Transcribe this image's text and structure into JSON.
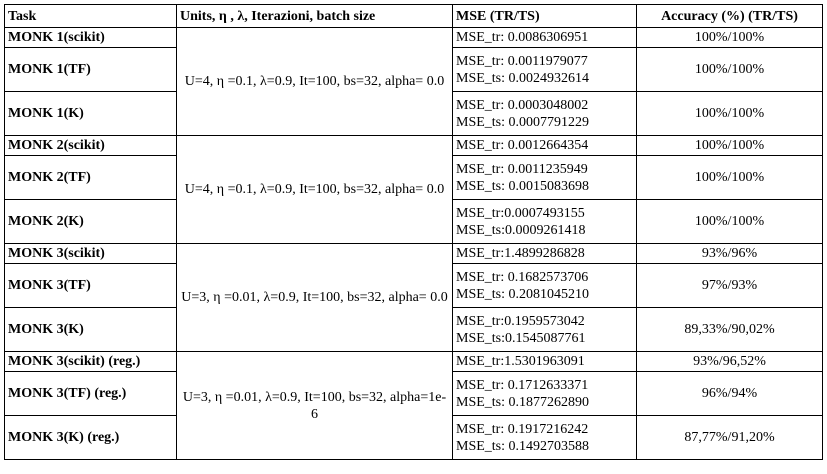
{
  "headers": {
    "task": "Task",
    "params": "Units, η ,  λ, Iterazioni, batch size",
    "mse": "MSE (TR/TS)",
    "accuracy": "Accuracy (%) (TR/TS)"
  },
  "groups": [
    {
      "params": "U=4, η =0.1, λ=0.9, It=100,  bs=32, alpha= 0.0",
      "rows": [
        {
          "task": "MONK 1(scikit)",
          "mse": [
            "MSE_tr: 0.0086306951"
          ],
          "accuracy": "100%/100%"
        },
        {
          "task": "MONK 1(TF)",
          "mse": [
            "MSE_tr: 0.0011979077",
            "MSE_ts: 0.0024932614"
          ],
          "accuracy": "100%/100%"
        },
        {
          "task": "MONK 1(K)",
          "mse": [
            "MSE_tr: 0.0003048002",
            "MSE_ts: 0.0007791229"
          ],
          "accuracy": "100%/100%"
        }
      ]
    },
    {
      "params": "U=4, η =0.1, λ=0.9, It=100,  bs=32, alpha= 0.0",
      "rows": [
        {
          "task": "MONK 2(scikit)",
          "mse": [
            "MSE_tr: 0.0012664354"
          ],
          "accuracy": "100%/100%"
        },
        {
          "task": "MONK 2(TF)",
          "mse": [
            "MSE_tr: 0.0011235949",
            "MSE_ts: 0.0015083698"
          ],
          "accuracy": "100%/100%"
        },
        {
          "task": "MONK 2(K)",
          "mse": [
            "MSE_tr:0.0007493155",
            "MSE_ts:0.0009261418"
          ],
          "accuracy": "100%/100%"
        }
      ]
    },
    {
      "params": "U=3, η =0.01, λ=0.9, It=100,  bs=32, alpha= 0.0",
      "rows": [
        {
          "task": "MONK 3(scikit)",
          "mse": [
            "MSE_tr:1.4899286828"
          ],
          "accuracy": "93%/96%"
        },
        {
          "task": "MONK 3(TF)",
          "mse": [
            "MSE_tr: 0.1682573706",
            "MSE_ts: 0.2081045210"
          ],
          "accuracy": "97%/93%"
        },
        {
          "task": "MONK 3(K)",
          "mse": [
            "MSE_tr:0.1959573042",
            "MSE_ts:0.1545087761"
          ],
          "accuracy": "89,33%/90,02%"
        }
      ]
    },
    {
      "params": "U=3, η =0.01, λ=0.9, It=100,  bs=32, alpha=1e-6",
      "rows": [
        {
          "task": "MONK 3(scikit) (reg.)",
          "mse": [
            "MSE_tr:1.5301963091"
          ],
          "accuracy": "93%/96,52%"
        },
        {
          "task": "MONK 3(TF) (reg.)",
          "mse": [
            "MSE_tr: 0.1712633371",
            "MSE_ts: 0.1877262890"
          ],
          "accuracy": "96%/94%"
        },
        {
          "task": "MONK 3(K) (reg.)",
          "mse": [
            "MSE_tr: 0.1917216242",
            "MSE_ts: 0.1492703588"
          ],
          "accuracy": "87,77%/91,20%"
        }
      ]
    }
  ]
}
